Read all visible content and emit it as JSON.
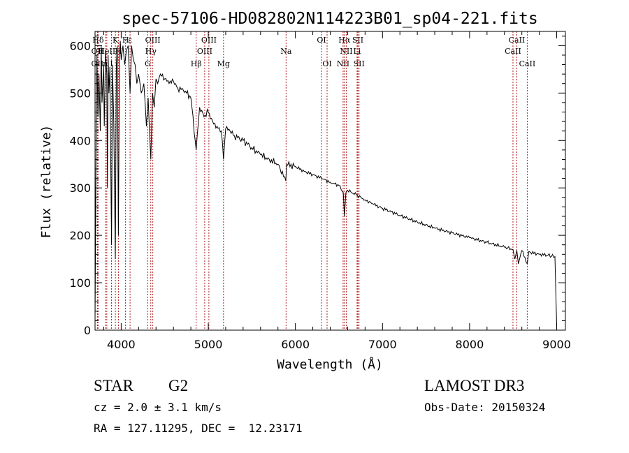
{
  "chart_data": {
    "type": "line",
    "title": "spec-57106-HD082802N114223B01_sp04-221.fits",
    "xlabel": "Wavelength (Å)",
    "ylabel": "Flux (relative)",
    "xlim": [
      3700,
      9100
    ],
    "ylim": [
      0,
      630
    ],
    "xticks": [
      4000,
      5000,
      6000,
      7000,
      8000,
      9000
    ],
    "yticks": [
      0,
      100,
      200,
      300,
      400,
      500,
      600
    ],
    "grid": false,
    "series": [
      {
        "name": "flux",
        "color": "#000000",
        "x": [
          3700,
          3712,
          3722,
          3734,
          3745,
          3760,
          3771,
          3780,
          3797,
          3806,
          3820,
          3835,
          3842,
          3850,
          3860,
          3870,
          3889,
          3900,
          3915,
          3933,
          3945,
          3955,
          3968,
          3980,
          3990,
          4000,
          4020,
          4040,
          4060,
          4080,
          4102,
          4120,
          4140,
          4160,
          4180,
          4200,
          4230,
          4260,
          4290,
          4310,
          4340,
          4360,
          4380,
          4400,
          4420,
          4450,
          4500,
          4550,
          4600,
          4650,
          4700,
          4750,
          4800,
          4861,
          4900,
          4950,
          5000,
          5050,
          5100,
          5150,
          5175,
          5200,
          5250,
          5300,
          5400,
          5500,
          5600,
          5700,
          5800,
          5890,
          5900,
          6000,
          6100,
          6200,
          6300,
          6400,
          6500,
          6550,
          6563,
          6580,
          6600,
          6700,
          6800,
          6900,
          7000,
          7200,
          7400,
          7600,
          7800,
          8000,
          8200,
          8400,
          8498,
          8520,
          8542,
          8560,
          8600,
          8662,
          8680,
          8700,
          8800,
          8900,
          8980,
          9000
        ],
        "y": [
          20,
          400,
          580,
          450,
          540,
          420,
          600,
          480,
          560,
          430,
          590,
          540,
          300,
          580,
          500,
          555,
          180,
          560,
          440,
          150,
          560,
          600,
          200,
          580,
          610,
          570,
          600,
          560,
          590,
          600,
          500,
          600,
          570,
          560,
          520,
          540,
          500,
          520,
          430,
          490,
          360,
          500,
          470,
          530,
          520,
          540,
          530,
          520,
          525,
          510,
          510,
          500,
          490,
          380,
          470,
          450,
          460,
          440,
          430,
          420,
          360,
          425,
          420,
          410,
          400,
          385,
          370,
          360,
          350,
          315,
          350,
          345,
          335,
          328,
          320,
          312,
          305,
          290,
          240,
          290,
          295,
          285,
          275,
          265,
          257,
          242,
          228,
          215,
          205,
          195,
          185,
          175,
          170,
          150,
          168,
          140,
          168,
          140,
          166,
          164,
          160,
          158,
          155,
          10
        ]
      }
    ],
    "lines": [
      {
        "label": "Hδ",
        "wl": 3735,
        "row": 1
      },
      {
        "label": "OII",
        "wl": 3727,
        "row": 2
      },
      {
        "label": "OII",
        "wl": 3727,
        "row": 3
      },
      {
        "label": "K",
        "wl": 3934,
        "row": 1
      },
      {
        "label": "HeII",
        "wl": 3835,
        "row": 2
      },
      {
        "label": "H",
        "wl": 3968,
        "row": 2
      },
      {
        "label": "n",
        "wl": 3818,
        "row": 3
      },
      {
        "label": "I",
        "wl": 3889,
        "row": 3
      },
      {
        "label": "H",
        "wl": 4050,
        "row": 1
      },
      {
        "label": "ε",
        "wl": 4102,
        "row": 1
      },
      {
        "label": "OIII",
        "wl": 4363,
        "row": 1
      },
      {
        "label": "Hγ",
        "wl": 4340,
        "row": 2
      },
      {
        "label": "G",
        "wl": 4305,
        "row": 3
      },
      {
        "label": "OIII",
        "wl": 5007,
        "row": 1
      },
      {
        "label": "OIII",
        "wl": 4959,
        "row": 2
      },
      {
        "label": "Hβ",
        "wl": 4861,
        "row": 3
      },
      {
        "label": "Mg",
        "wl": 5175,
        "row": 3
      },
      {
        "label": "Na",
        "wl": 5893,
        "row": 2
      },
      {
        "label": "OI",
        "wl": 6300,
        "row": 1
      },
      {
        "label": "OI",
        "wl": 6364,
        "row": 3
      },
      {
        "label": "Hα",
        "wl": 6563,
        "row": 1
      },
      {
        "label": "SII",
        "wl": 6717,
        "row": 1
      },
      {
        "label": "NII",
        "wl": 6584,
        "row": 2
      },
      {
        "label": "Li",
        "wl": 6708,
        "row": 2
      },
      {
        "label": "NII",
        "wl": 6548,
        "row": 3
      },
      {
        "label": "SII",
        "wl": 6731,
        "row": 3
      },
      {
        "label": "CaII",
        "wl": 8542,
        "row": 1
      },
      {
        "label": "CaII",
        "wl": 8498,
        "row": 2
      },
      {
        "label": "CaII",
        "wl": 8662,
        "row": 3
      }
    ]
  },
  "info": {
    "object_type": "STAR",
    "subclass": "G2",
    "cz": "cz = 2.0 ± 3.1 km/s",
    "coords": "RA = 127.11295, DEC =  12.23171",
    "survey": "LAMOST DR3",
    "obs_date": "Obs-Date: 20150324"
  },
  "colors": {
    "axis": "#000000",
    "spectrum": "#000000",
    "line_marker": "#b22222"
  }
}
